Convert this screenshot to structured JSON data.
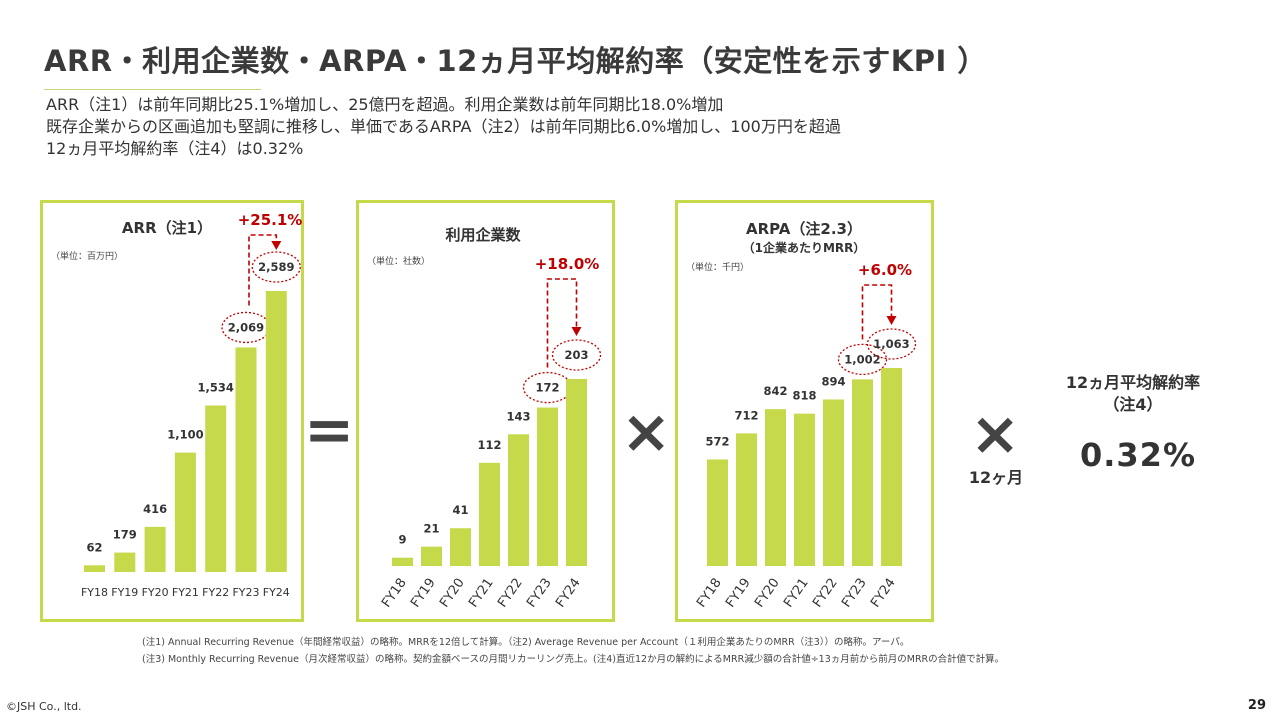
{
  "title": "ARR・利用企業数・ARPA・12ヵ月平均解約率（安定性を示すKPI ）",
  "lead_lines": [
    "ARR（注1）は前年同期比25.1%増加し、25億円を超過。利用企業数は前年同期比18.0%増加",
    "既存企業からの区画追加も堅調に推移し、単価であるARPA（注2）は前年同期比6.0%増加し、100万円を超過",
    "12ヵ月平均解約率（注4）は0.32%"
  ],
  "colors": {
    "bar": "#c6d94a",
    "border": "#c6d94a",
    "accent": "#c00000",
    "text": "#333333"
  },
  "operators": {
    "equals": "=",
    "times1": "×",
    "times2": "×"
  },
  "months_label": "12ヶ月",
  "kpi": {
    "label_line1": "12ヵ月平均解約率",
    "label_line2": "（注4）",
    "value": "0.32%"
  },
  "chart_data": [
    {
      "type": "bar",
      "title": "ARR（注1）",
      "subtitle": "",
      "unit": "（単位：百万円）",
      "growth": "+25.1%",
      "categories": [
        "FY18",
        "FY19",
        "FY20",
        "FY21",
        "FY22",
        "FY23",
        "FY24"
      ],
      "values": [
        62,
        179,
        416,
        1100,
        1534,
        2069,
        2589
      ],
      "labels": [
        "62",
        "179",
        "416",
        "1,100",
        "1,534",
        "2,069",
        "2,589"
      ],
      "ylim": [
        0,
        2589
      ],
      "rotated_ticks": false,
      "highlight": [
        5,
        6
      ]
    },
    {
      "type": "bar",
      "title": "利用企業数",
      "subtitle": "",
      "unit": "（単位：社数）",
      "growth": "+18.0%",
      "categories": [
        "FY18",
        "FY19",
        "FY20",
        "FY21",
        "FY22",
        "FY23",
        "FY24"
      ],
      "values": [
        9,
        21,
        41,
        112,
        143,
        172,
        203
      ],
      "labels": [
        "9",
        "21",
        "41",
        "112",
        "143",
        "172",
        "203"
      ],
      "ylim": [
        0,
        203
      ],
      "rotated_ticks": true,
      "highlight": [
        5,
        6
      ]
    },
    {
      "type": "bar",
      "title": "ARPA（注2.3）",
      "subtitle": "（1企業あたりMRR）",
      "unit": "（単位：千円）",
      "growth": "+6.0%",
      "categories": [
        "FY18",
        "FY19",
        "FY20",
        "FY21",
        "FY22",
        "FY23",
        "FY24"
      ],
      "values": [
        572,
        712,
        842,
        818,
        894,
        1002,
        1063
      ],
      "labels": [
        "572",
        "712",
        "842",
        "818",
        "894",
        "1,002",
        "1,063"
      ],
      "ylim": [
        0,
        1063
      ],
      "rotated_ticks": true,
      "highlight": [
        5,
        6
      ]
    }
  ],
  "footnotes": [
    "(注1) Annual Recurring Revenue（年間経常収益）の略称。MRRを12倍して計算。（注2) Average Revenue per Account（１利用企業あたりのMRR（注3））の略称。アーパ。",
    "(注3) Monthly Recurring Revenue（月次経常収益）の略称。契約金額ベースの月間リカーリング売上。(注4)直近12か月の解約によるMRR減少額の合計値÷13ヵ月前から前月のMRRの合計値で計算。"
  ],
  "copyright": "©JSH Co., ltd.",
  "page_number": "29"
}
